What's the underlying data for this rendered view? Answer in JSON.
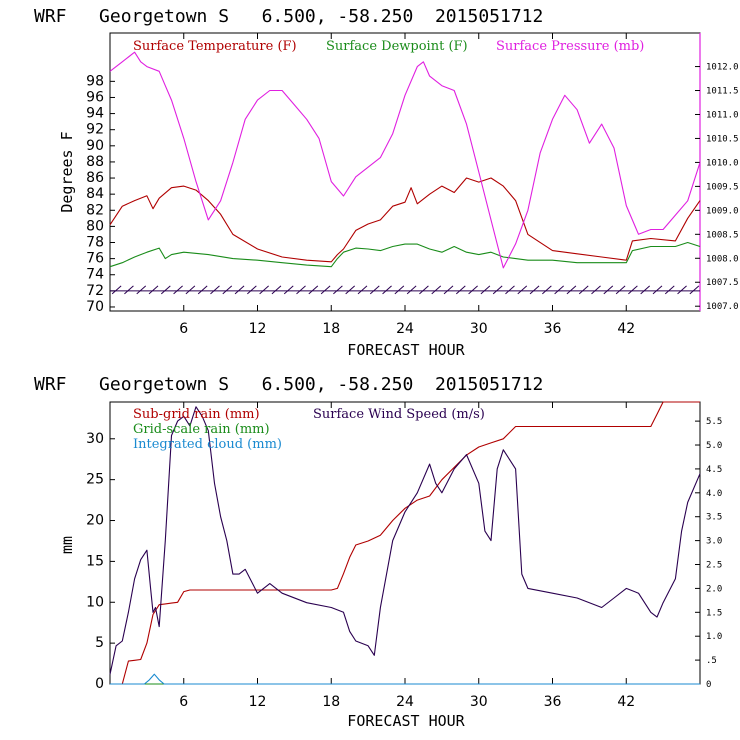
{
  "chart_data": [
    {
      "type": "line",
      "title": "WRF   Georgetown S   6.500, -58.250  2015051712",
      "xlabel": "FORECAST HOUR",
      "ylabel": "Degrees F",
      "xlim": [
        0,
        48
      ],
      "ylim": [
        69.5,
        104
      ],
      "y2lim": [
        1006.9,
        1012.7
      ],
      "x_ticks": [
        6,
        12,
        18,
        24,
        30,
        36,
        42
      ],
      "y_ticks": [
        70,
        72,
        74,
        76,
        78,
        80,
        82,
        84,
        86,
        88,
        90,
        92,
        94,
        96,
        98
      ],
      "y2_ticks": [
        "1007.0",
        "1007.5",
        "1008.0",
        "1008.5",
        "1009.0",
        "1009.5",
        "1010.0",
        "1010.5",
        "1011.0",
        "1011.5",
        "1012.0"
      ],
      "colors": {
        "temp": "#b00000",
        "dew": "#1a8c1a",
        "pres": "#e020e0",
        "wind": "#2a0050"
      },
      "series": [
        {
          "name": "Surface Temperature (F)",
          "axis": "left",
          "x": [
            0,
            1,
            2,
            3,
            3.5,
            4,
            5,
            6,
            7,
            8,
            9,
            10,
            12,
            14,
            16,
            18,
            18.5,
            19,
            20,
            21,
            22,
            23,
            24,
            24.5,
            25,
            26,
            27,
            28,
            29,
            30,
            31,
            32,
            33,
            34,
            36,
            38,
            40,
            42,
            42.5,
            44,
            46,
            47,
            48
          ],
          "y": [
            80.2,
            82.5,
            83.2,
            83.8,
            82.2,
            83.5,
            84.8,
            85.0,
            84.5,
            83.2,
            81.5,
            79.0,
            77.2,
            76.2,
            75.8,
            75.6,
            76.5,
            77.2,
            79.5,
            80.3,
            80.8,
            82.5,
            83.0,
            84.8,
            82.8,
            84.0,
            85.0,
            84.2,
            86.0,
            85.5,
            86.0,
            85.0,
            83.2,
            79.0,
            77.0,
            76.6,
            76.2,
            75.8,
            78.2,
            78.5,
            78.2,
            81.0,
            83.2
          ]
        },
        {
          "name": "Surface Dewpoint (F)",
          "axis": "left",
          "x": [
            0,
            1,
            2,
            3,
            4,
            4.5,
            5,
            6,
            8,
            10,
            12,
            14,
            16,
            18,
            18.5,
            19,
            20,
            21,
            22,
            23,
            24,
            25,
            26,
            27,
            28,
            29,
            30,
            31,
            32,
            34,
            36,
            38,
            40,
            42,
            42.5,
            44,
            46,
            47,
            48
          ],
          "y": [
            75.0,
            75.5,
            76.2,
            76.8,
            77.3,
            76.0,
            76.5,
            76.8,
            76.5,
            76.0,
            75.8,
            75.5,
            75.2,
            75.0,
            76.0,
            76.8,
            77.3,
            77.2,
            77.0,
            77.5,
            77.8,
            77.8,
            77.2,
            76.8,
            77.5,
            76.8,
            76.5,
            76.8,
            76.2,
            75.8,
            75.8,
            75.5,
            75.5,
            75.5,
            77.0,
            77.5,
            77.5,
            78.0,
            77.5
          ]
        },
        {
          "name": "Surface Pressure (mb)",
          "axis": "right",
          "x": [
            0,
            1,
            2,
            2.5,
            3,
            4,
            4.5,
            5,
            6,
            7,
            8,
            9,
            10,
            11,
            12,
            13,
            14,
            15,
            16,
            17,
            18,
            19,
            20,
            21,
            22,
            23,
            24,
            25,
            25.5,
            26,
            27,
            28,
            29,
            30,
            31,
            32,
            33,
            34,
            35,
            36,
            37,
            38,
            39,
            40,
            41,
            42,
            43,
            44,
            45,
            46,
            47,
            48
          ],
          "y": [
            1011.9,
            1012.1,
            1012.3,
            1012.1,
            1012.0,
            1011.9,
            1011.6,
            1011.3,
            1010.5,
            1009.6,
            1008.8,
            1009.2,
            1010.0,
            1010.9,
            1011.3,
            1011.5,
            1011.5,
            1011.2,
            1010.9,
            1010.5,
            1009.6,
            1009.3,
            1009.7,
            1009.9,
            1010.1,
            1010.6,
            1011.4,
            1012.0,
            1012.1,
            1011.8,
            1011.6,
            1011.5,
            1010.8,
            1009.8,
            1008.8,
            1007.8,
            1008.3,
            1009.0,
            1010.2,
            1010.9,
            1011.4,
            1011.1,
            1010.4,
            1010.8,
            1010.3,
            1009.1,
            1008.5,
            1008.6,
            1008.6,
            1008.9,
            1009.2,
            1010.0
          ]
        }
      ],
      "wind_barbs": {
        "y_level": 72,
        "x_start": 0.5,
        "x_end": 48,
        "step": 1
      }
    },
    {
      "type": "line",
      "title": "WRF   Georgetown S   6.500, -58.250  2015051712",
      "xlabel": "FORECAST HOUR",
      "ylabel": "mm",
      "xlim": [
        0,
        48
      ],
      "ylim": [
        0,
        34.5
      ],
      "y2lim": [
        0,
        5.9
      ],
      "x_ticks": [
        6,
        12,
        18,
        24,
        30,
        36,
        42
      ],
      "y_ticks": [
        0,
        5,
        10,
        15,
        20,
        25,
        30
      ],
      "y2_ticks": [
        "0",
        ".5",
        "1.0",
        "1.5",
        "2.0",
        "2.5",
        "3.0",
        "3.5",
        "4.0",
        "4.5",
        "5.0",
        "5.5"
      ],
      "series": [
        {
          "name": "Sub-grid rain (mm)",
          "axis": "left",
          "x": [
            0,
            1,
            1.5,
            2,
            2.5,
            3,
            3.5,
            4,
            4.5,
            5,
            5.5,
            6,
            6.5,
            7,
            18,
            18.5,
            19,
            19.5,
            20,
            21,
            22,
            23,
            24,
            25,
            26,
            27,
            28,
            29,
            30,
            31,
            32,
            33,
            44,
            44.5,
            45,
            48
          ],
          "y": [
            0,
            0,
            2.8,
            2.9,
            3.0,
            5.0,
            8.5,
            9.7,
            9.8,
            9.9,
            10.0,
            11.3,
            11.5,
            11.5,
            11.5,
            11.7,
            13.5,
            15.5,
            17.0,
            17.5,
            18.2,
            20.0,
            21.5,
            22.5,
            23.0,
            25.0,
            26.5,
            28.0,
            29.0,
            29.5,
            30.0,
            31.5,
            31.5,
            33.0,
            34.5,
            34.5
          ]
        },
        {
          "name": "Grid-scale rain (mm)",
          "axis": "left",
          "x": [
            0,
            48
          ],
          "y": [
            0,
            0
          ]
        },
        {
          "name": "Integrated cloud (mm)",
          "axis": "left",
          "x": [
            0,
            2.8,
            3.2,
            3.6,
            4.0,
            4.4,
            48
          ],
          "y": [
            0,
            0,
            0.5,
            1.2,
            0.5,
            0,
            0
          ]
        },
        {
          "name": "Surface Wind Speed (m/s)",
          "axis": "right",
          "x": [
            0,
            0.5,
            1,
            1.5,
            2,
            2.5,
            3,
            3.3,
            3.5,
            3.7,
            4,
            4.5,
            5,
            5.5,
            6,
            6.5,
            7,
            7.5,
            8,
            8.5,
            9,
            9.5,
            10,
            10.5,
            11,
            12,
            13,
            14,
            16,
            18,
            19,
            19.5,
            20,
            21,
            21.5,
            22,
            23,
            24,
            25,
            26,
            26.5,
            27,
            28,
            29,
            30,
            30.5,
            31,
            31.5,
            32,
            32.5,
            33,
            33.5,
            34,
            36,
            38,
            40,
            41,
            42,
            43,
            44,
            44.5,
            45,
            46,
            46.5,
            47,
            48
          ],
          "y": [
            0.2,
            0.8,
            0.9,
            1.5,
            2.2,
            2.6,
            2.8,
            2.0,
            1.5,
            1.6,
            1.2,
            3.0,
            5.2,
            5.5,
            5.6,
            5.4,
            5.8,
            5.6,
            5.3,
            4.2,
            3.5,
            3.0,
            2.3,
            2.3,
            2.4,
            1.9,
            2.1,
            1.9,
            1.7,
            1.6,
            1.5,
            1.1,
            0.9,
            0.8,
            0.6,
            1.6,
            3.0,
            3.6,
            4.0,
            4.6,
            4.2,
            4.0,
            4.5,
            4.8,
            4.2,
            3.2,
            3.0,
            4.5,
            4.9,
            4.7,
            4.5,
            2.3,
            2.0,
            1.9,
            1.8,
            1.6,
            1.8,
            2.0,
            1.9,
            1.5,
            1.4,
            1.7,
            2.2,
            3.2,
            3.8,
            4.4
          ]
        }
      ]
    }
  ]
}
